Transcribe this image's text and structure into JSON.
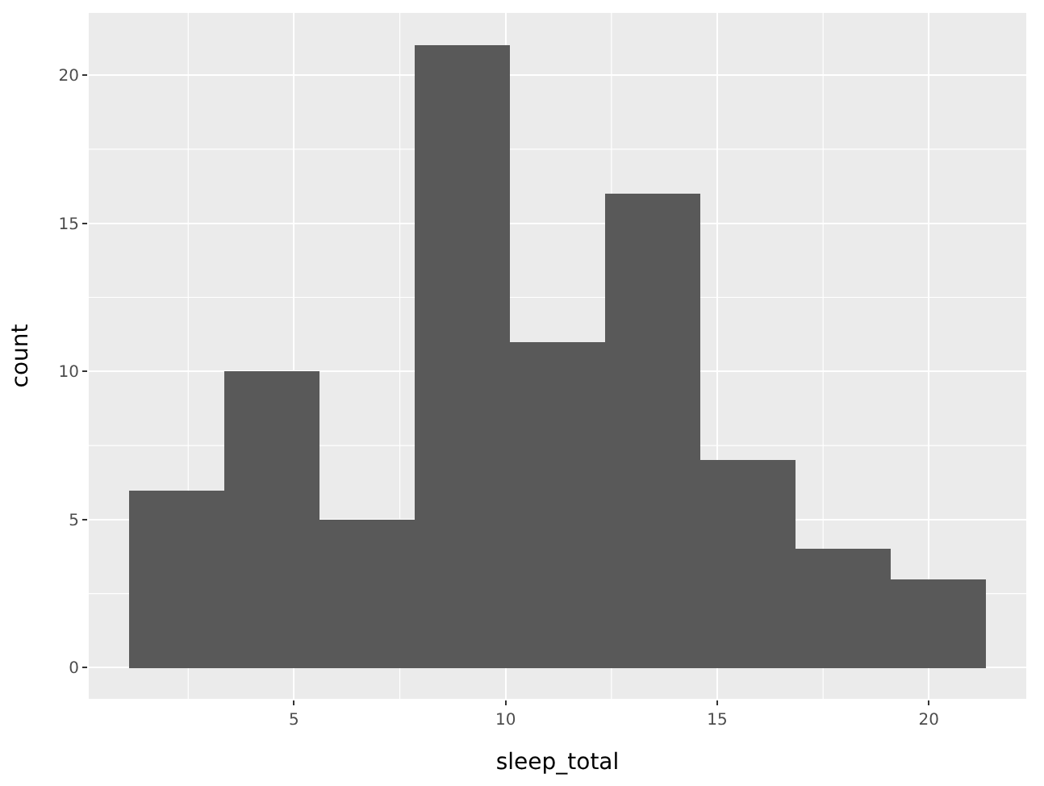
{
  "chart_data": {
    "type": "histogram",
    "xlabel": "sleep_total",
    "ylabel": "count",
    "bins": [
      1.1,
      3.35,
      5.6,
      7.85,
      10.1,
      12.35,
      14.6,
      16.85,
      19.1,
      21.35
    ],
    "values": [
      6,
      10,
      5,
      21,
      11,
      16,
      7,
      4,
      3
    ],
    "color": "#595959",
    "xlim": [
      0.15,
      22.3
    ],
    "ylim": [
      -1.05,
      22.1
    ],
    "xticks": [
      5,
      10,
      15,
      20
    ],
    "yticks": [
      0,
      5,
      10,
      15,
      20
    ],
    "grid": true
  }
}
